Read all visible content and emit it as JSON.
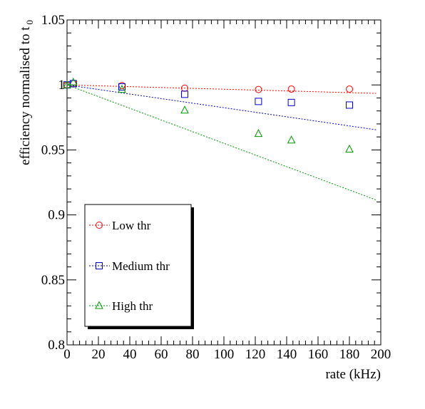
{
  "chart_data": {
    "type": "scatter",
    "xlabel": "rate (kHz)",
    "ylabel": "efficiency normalised to t",
    "ylabel_subscript": "0",
    "xlim": [
      0,
      200
    ],
    "ylim": [
      0.8,
      1.05
    ],
    "x_ticks": [
      "0",
      "20",
      "40",
      "60",
      "80",
      "100",
      "120",
      "140",
      "160",
      "180",
      "200"
    ],
    "x_tick_values": [
      0,
      20,
      40,
      60,
      80,
      100,
      120,
      140,
      160,
      180,
      200
    ],
    "y_ticks": [
      "0.8",
      "0.85",
      "0.9",
      "0.95",
      "1",
      "1.05"
    ],
    "y_tick_values": [
      0.8,
      0.85,
      0.9,
      0.95,
      1.0,
      1.05
    ],
    "grid": false,
    "legend_position": "bottom-left",
    "series": [
      {
        "name": "Low thr",
        "marker": "circle",
        "color": "#ff0000",
        "x": [
          0,
          4,
          35,
          75,
          122,
          143,
          180
        ],
        "y": [
          1.0,
          1.001,
          0.9995,
          0.9975,
          0.9965,
          0.9968,
          0.9968
        ],
        "fit": {
          "x": [
            0,
            197
          ],
          "y": [
            1.0,
            0.9935
          ]
        }
      },
      {
        "name": "Medium thr",
        "marker": "square",
        "color": "#0000cc",
        "x": [
          0,
          4,
          35,
          75,
          122,
          143,
          180
        ],
        "y": [
          1.0,
          1.001,
          0.9985,
          0.9928,
          0.9873,
          0.9865,
          0.9845
        ],
        "fit": {
          "x": [
            0,
            197
          ],
          "y": [
            1.0,
            0.9655
          ]
        }
      },
      {
        "name": "High thr",
        "marker": "triangle",
        "color": "#009900",
        "x": [
          0,
          4,
          35,
          75,
          122,
          143,
          180
        ],
        "y": [
          1.0,
          1.002,
          0.9965,
          0.9805,
          0.9625,
          0.9575,
          0.9505
        ],
        "fit": {
          "x": [
            0,
            197
          ],
          "y": [
            1.0,
            0.9115
          ]
        }
      }
    ]
  }
}
